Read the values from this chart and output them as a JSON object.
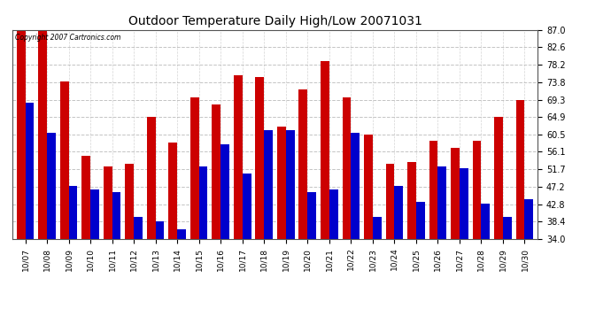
{
  "title": "Outdoor Temperature Daily High/Low 20071031",
  "copyright": "Copyright 2007 Cartronics.com",
  "dates": [
    "10/07",
    "10/08",
    "10/09",
    "10/10",
    "10/11",
    "10/12",
    "10/13",
    "10/14",
    "10/15",
    "10/16",
    "10/17",
    "10/18",
    "10/19",
    "10/20",
    "10/21",
    "10/22",
    "10/23",
    "10/24",
    "10/25",
    "10/26",
    "10/27",
    "10/28",
    "10/29",
    "10/30"
  ],
  "highs": [
    87.0,
    87.0,
    74.0,
    55.0,
    52.5,
    53.0,
    65.0,
    58.5,
    70.0,
    68.0,
    75.5,
    75.0,
    62.5,
    72.0,
    79.0,
    70.0,
    60.5,
    53.0,
    53.5,
    59.0,
    57.0,
    59.0,
    64.9,
    69.3
  ],
  "lows": [
    68.5,
    61.0,
    47.5,
    46.5,
    46.0,
    39.5,
    38.5,
    36.5,
    52.5,
    58.0,
    50.5,
    61.5,
    61.5,
    46.0,
    46.5,
    61.0,
    39.5,
    47.5,
    43.5,
    52.5,
    52.0,
    43.0,
    39.5,
    44.0
  ],
  "high_color": "#cc0000",
  "low_color": "#0000cc",
  "bg_color": "#ffffff",
  "grid_color": "#aaaaaa",
  "yticks": [
    34.0,
    38.4,
    42.8,
    47.2,
    51.7,
    56.1,
    60.5,
    64.9,
    69.3,
    73.8,
    78.2,
    82.6,
    87.0
  ],
  "ymin": 34.0,
  "ymax": 87.0,
  "bar_width": 0.4
}
